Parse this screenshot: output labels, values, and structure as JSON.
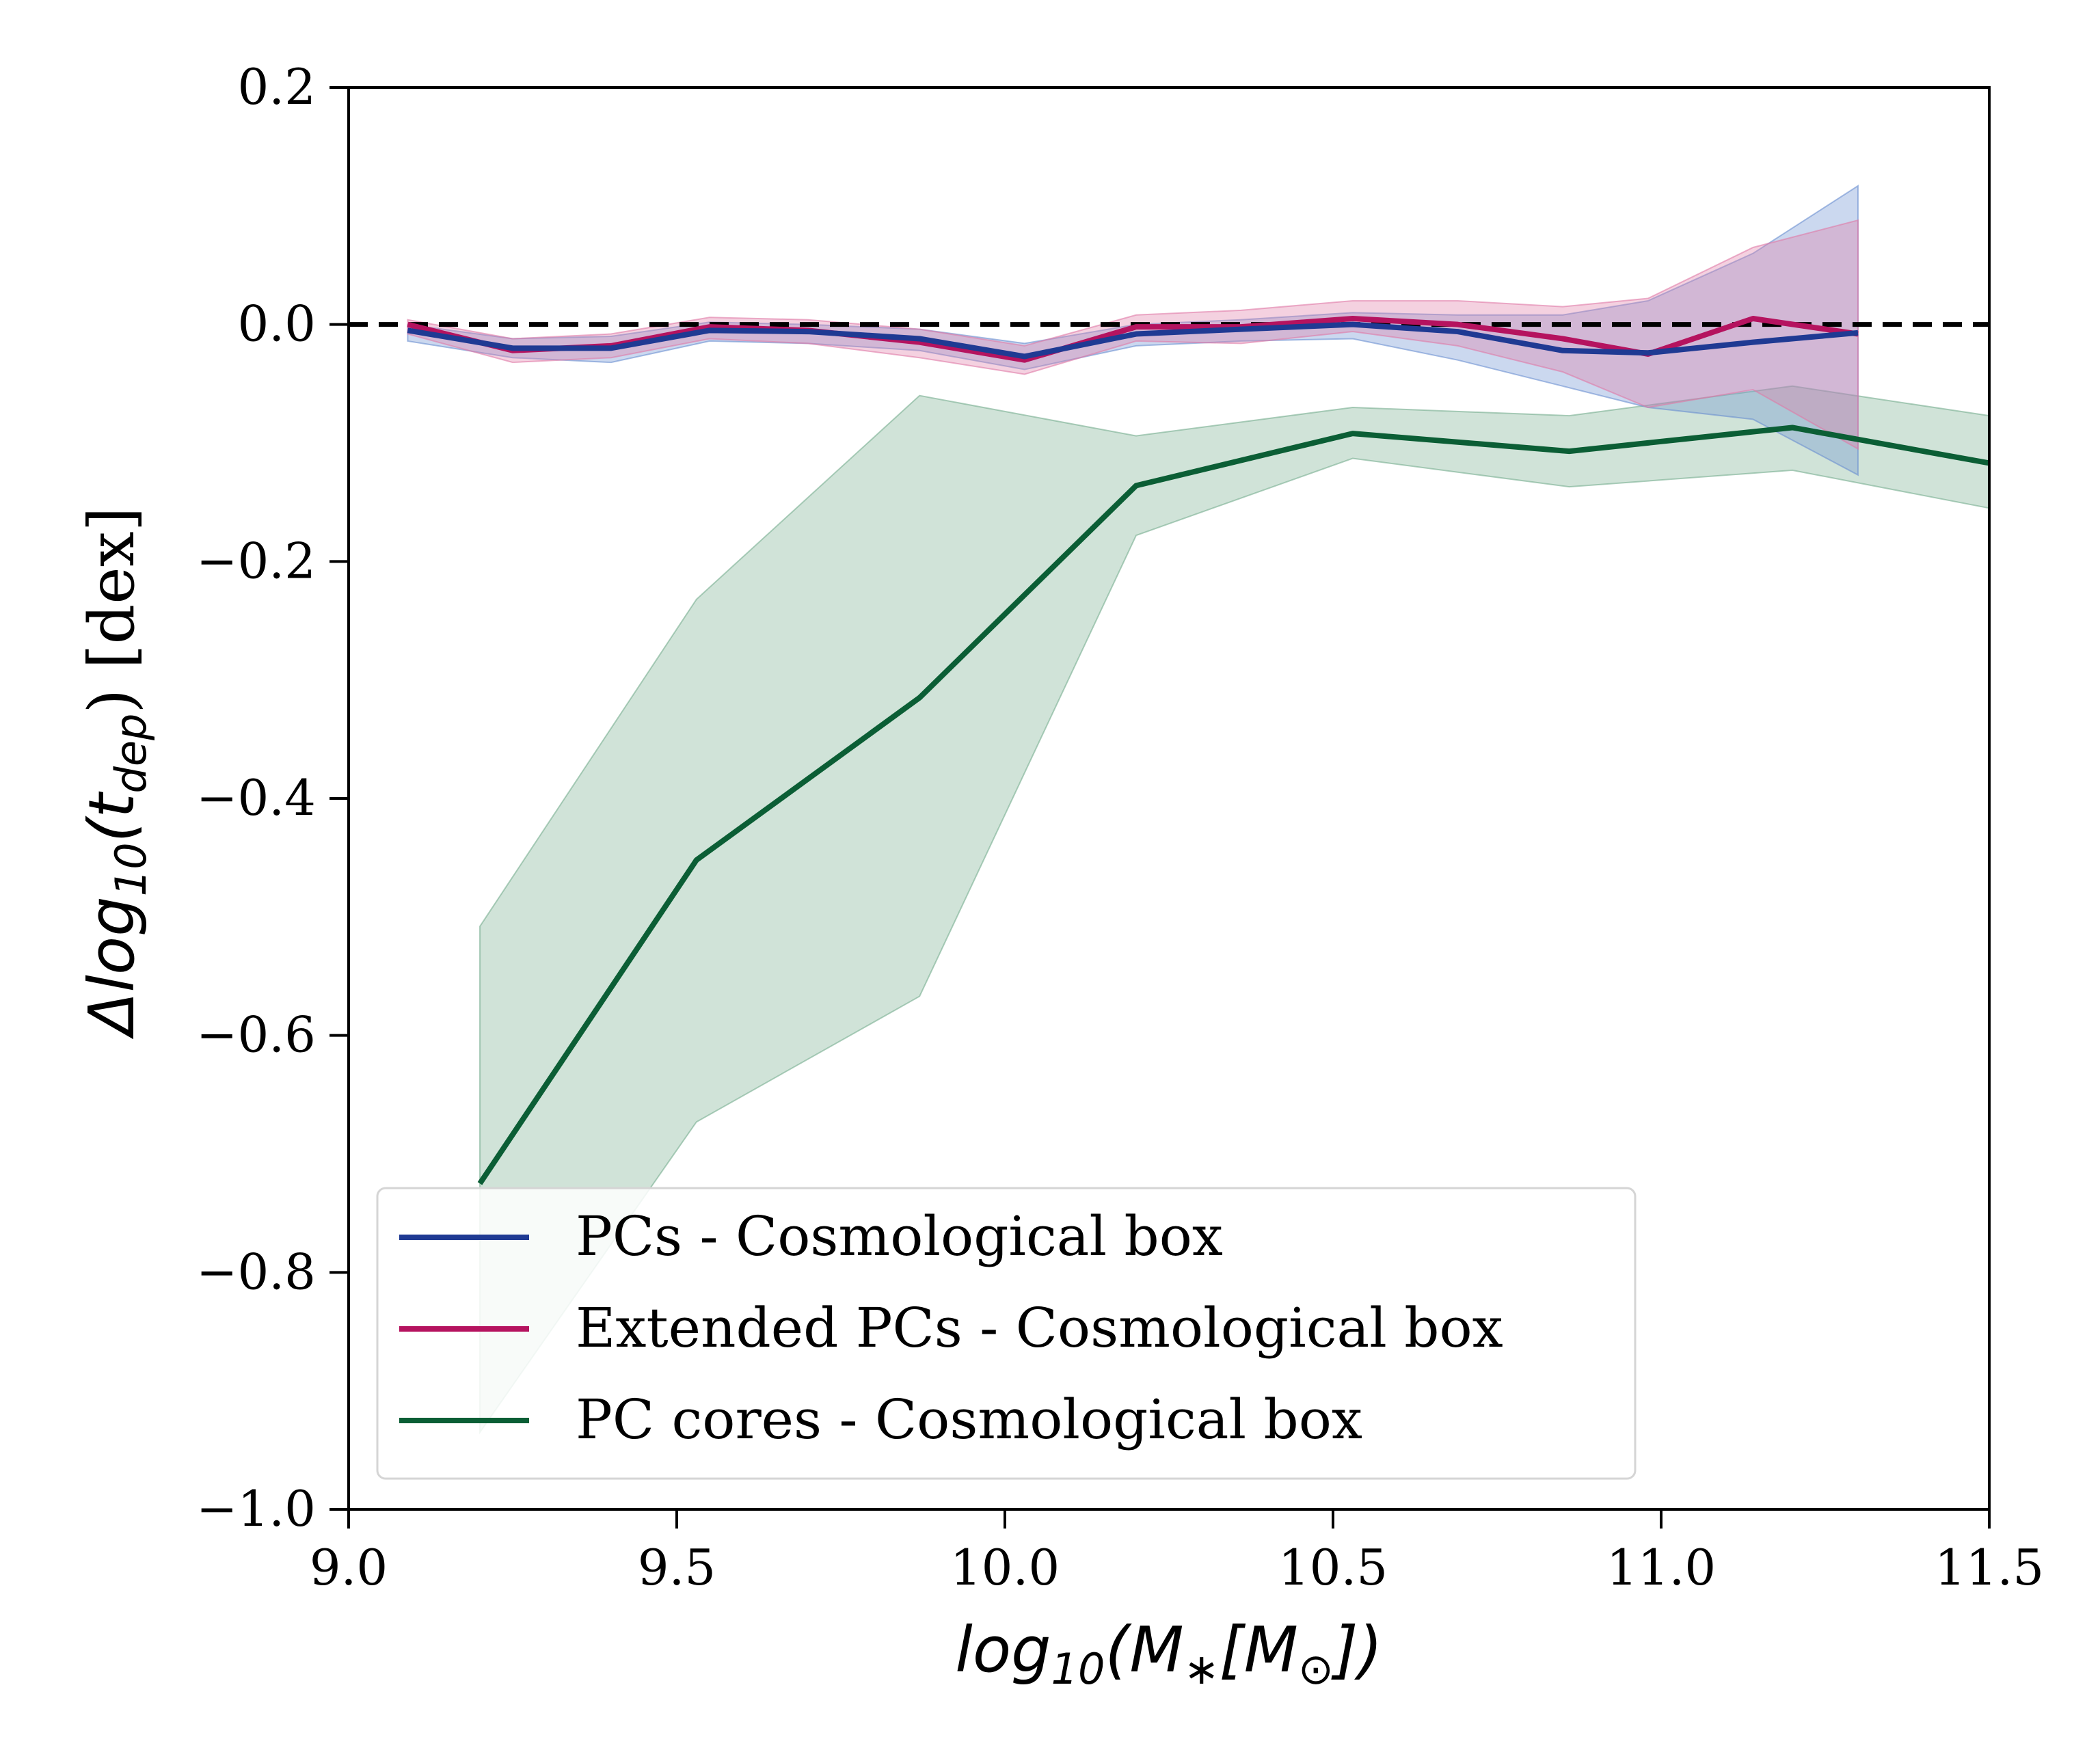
{
  "chart_data": {
    "type": "line",
    "title": "",
    "xlabel": {
      "prefix": "log",
      "sub": "10",
      "suffix_open": "(M",
      "star": "∗",
      "bracket": "[M",
      "sun": "⊙",
      "close": "])"
    },
    "ylabel": {
      "prefix": "Δlog",
      "sub": "10",
      "open": "(t",
      "dep": "dep",
      "close": ") [dex]"
    },
    "xlim": [
      9.0,
      11.5
    ],
    "ylim": [
      -1.0,
      0.2
    ],
    "xticks": [
      "9.0",
      "9.5",
      "10.0",
      "10.5",
      "11.0",
      "11.5"
    ],
    "xtick_values": [
      9.0,
      9.5,
      10.0,
      10.5,
      11.0,
      11.5
    ],
    "yticks": [
      "0.2",
      "0.0",
      "−0.2",
      "−0.4",
      "−0.6",
      "−0.8",
      "−1.0"
    ],
    "ytick_values": [
      0.2,
      0.0,
      -0.2,
      -0.4,
      -0.6,
      -0.8,
      -1.0
    ],
    "reference_line": {
      "y": 0.0,
      "style": "dashed",
      "color": "#000000"
    },
    "legend": {
      "placement": "lower-left"
    },
    "series": [
      {
        "name": "PCs - Cosmological box",
        "color": "#1f3a93",
        "fill_color": "#6b8fd0",
        "x": [
          9.09,
          9.25,
          9.4,
          9.55,
          9.7,
          9.87,
          10.03,
          10.2,
          10.36,
          10.53,
          10.69,
          10.85,
          10.98,
          11.14,
          11.3
        ],
        "y": [
          -0.005,
          -0.02,
          -0.02,
          -0.005,
          -0.006,
          -0.012,
          -0.027,
          -0.008,
          -0.004,
          0.0,
          -0.006,
          -0.022,
          -0.024,
          -0.015,
          -0.007
        ],
        "upper": [
          0.0,
          -0.012,
          -0.01,
          0.002,
          0.0,
          -0.004,
          -0.016,
          0.0,
          0.004,
          0.01,
          0.008,
          0.008,
          0.02,
          0.06,
          0.117
        ],
        "lower": [
          -0.014,
          -0.028,
          -0.032,
          -0.014,
          -0.016,
          -0.022,
          -0.038,
          -0.018,
          -0.014,
          -0.012,
          -0.03,
          -0.052,
          -0.07,
          -0.08,
          -0.127
        ]
      },
      {
        "name": "Extended PCs - Cosmological box",
        "color": "#b5135f",
        "fill_color": "#e07aa6",
        "x": [
          9.09,
          9.25,
          9.4,
          9.55,
          9.7,
          9.87,
          10.03,
          10.2,
          10.36,
          10.53,
          10.69,
          10.85,
          10.98,
          11.14,
          11.3
        ],
        "y": [
          0.0,
          -0.022,
          -0.018,
          -0.002,
          -0.005,
          -0.015,
          -0.03,
          -0.002,
          -0.002,
          0.005,
          0.0,
          -0.012,
          -0.025,
          0.005,
          -0.008
        ],
        "upper": [
          0.004,
          -0.012,
          -0.008,
          0.006,
          0.004,
          -0.004,
          -0.018,
          0.008,
          0.012,
          0.02,
          0.02,
          0.015,
          0.022,
          0.065,
          0.088
        ],
        "lower": [
          -0.008,
          -0.032,
          -0.028,
          -0.012,
          -0.016,
          -0.028,
          -0.042,
          -0.014,
          -0.016,
          -0.006,
          -0.018,
          -0.04,
          -0.07,
          -0.055,
          -0.105
        ]
      },
      {
        "name": "PC cores - Cosmological box",
        "color": "#0b5e35",
        "fill_color": "#77ae8f",
        "x": [
          9.2,
          9.53,
          9.87,
          10.2,
          10.53,
          10.86,
          11.2,
          11.5
        ],
        "y": [
          -0.725,
          -0.452,
          -0.315,
          -0.136,
          -0.092,
          -0.107,
          -0.087,
          -0.117
        ],
        "upper": [
          -0.508,
          -0.232,
          -0.06,
          -0.094,
          -0.07,
          -0.077,
          -0.052,
          -0.077
        ],
        "lower": [
          -0.935,
          -0.673,
          -0.567,
          -0.178,
          -0.113,
          -0.137,
          -0.123,
          -0.155
        ]
      }
    ]
  }
}
